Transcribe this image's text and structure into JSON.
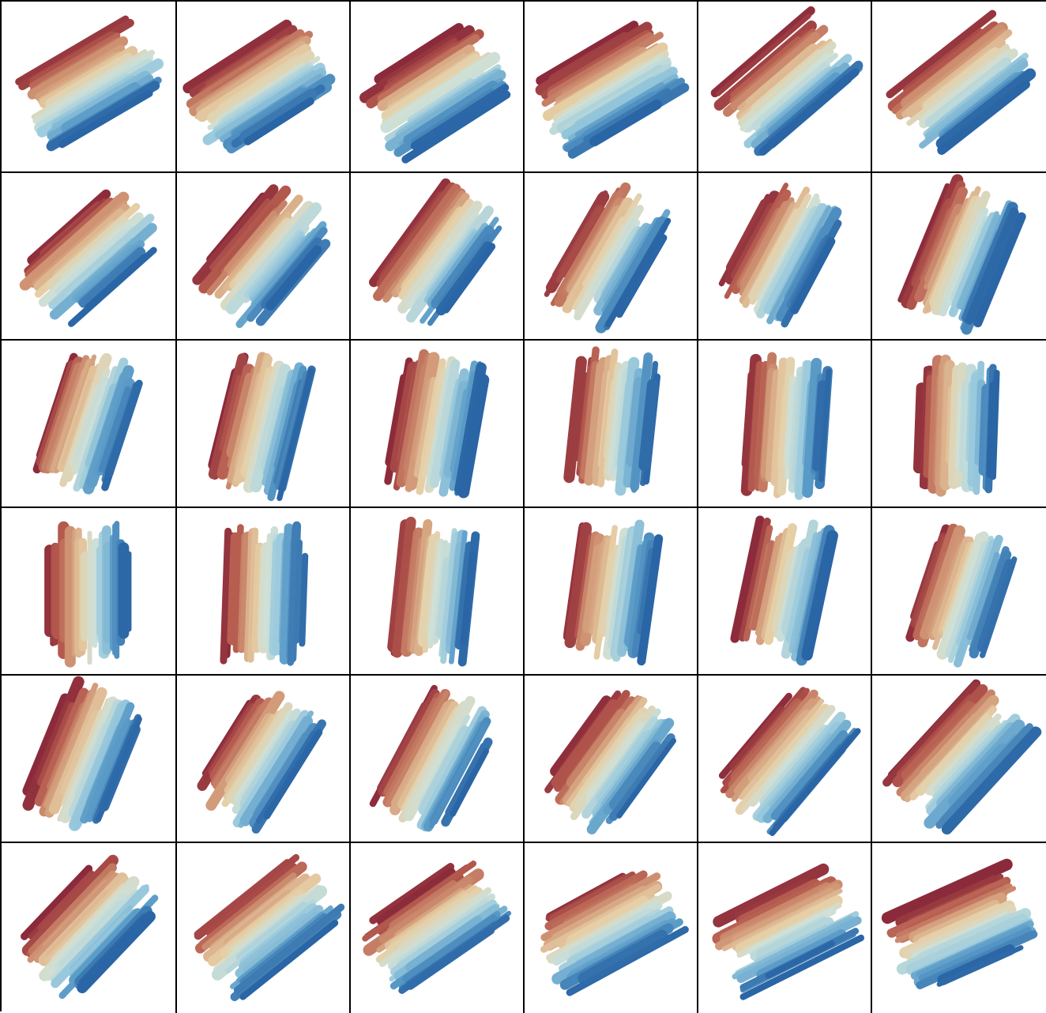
{
  "figure": {
    "rows": 6,
    "columns": 6,
    "colormap": [
      "#8b2a3a",
      "#b55a4e",
      "#d29a78",
      "#e6cfa6",
      "#cfe0d7",
      "#9ccbdd",
      "#5b9cc8",
      "#2a65a5"
    ],
    "strokes_per_panel": 34,
    "panels": [
      {
        "angle": 60
      },
      {
        "angle": 58
      },
      {
        "angle": 58
      },
      {
        "angle": 60
      },
      {
        "angle": 50
      },
      {
        "angle": 52
      },
      {
        "angle": 48
      },
      {
        "angle": 40
      },
      {
        "angle": 36
      },
      {
        "angle": 30
      },
      {
        "angle": 28
      },
      {
        "angle": 22
      },
      {
        "angle": 18
      },
      {
        "angle": 14
      },
      {
        "angle": 10
      },
      {
        "angle": 6
      },
      {
        "angle": 4
      },
      {
        "angle": 2
      },
      {
        "angle": 0
      },
      {
        "angle": 2
      },
      {
        "angle": 6
      },
      {
        "angle": 8
      },
      {
        "angle": 12
      },
      {
        "angle": 18
      },
      {
        "angle": 22
      },
      {
        "angle": 32
      },
      {
        "angle": 28
      },
      {
        "angle": 36
      },
      {
        "angle": 40
      },
      {
        "angle": 42
      },
      {
        "angle": 44
      },
      {
        "angle": 52
      },
      {
        "angle": 56
      },
      {
        "angle": 62
      },
      {
        "angle": 64
      },
      {
        "angle": 66
      }
    ]
  }
}
